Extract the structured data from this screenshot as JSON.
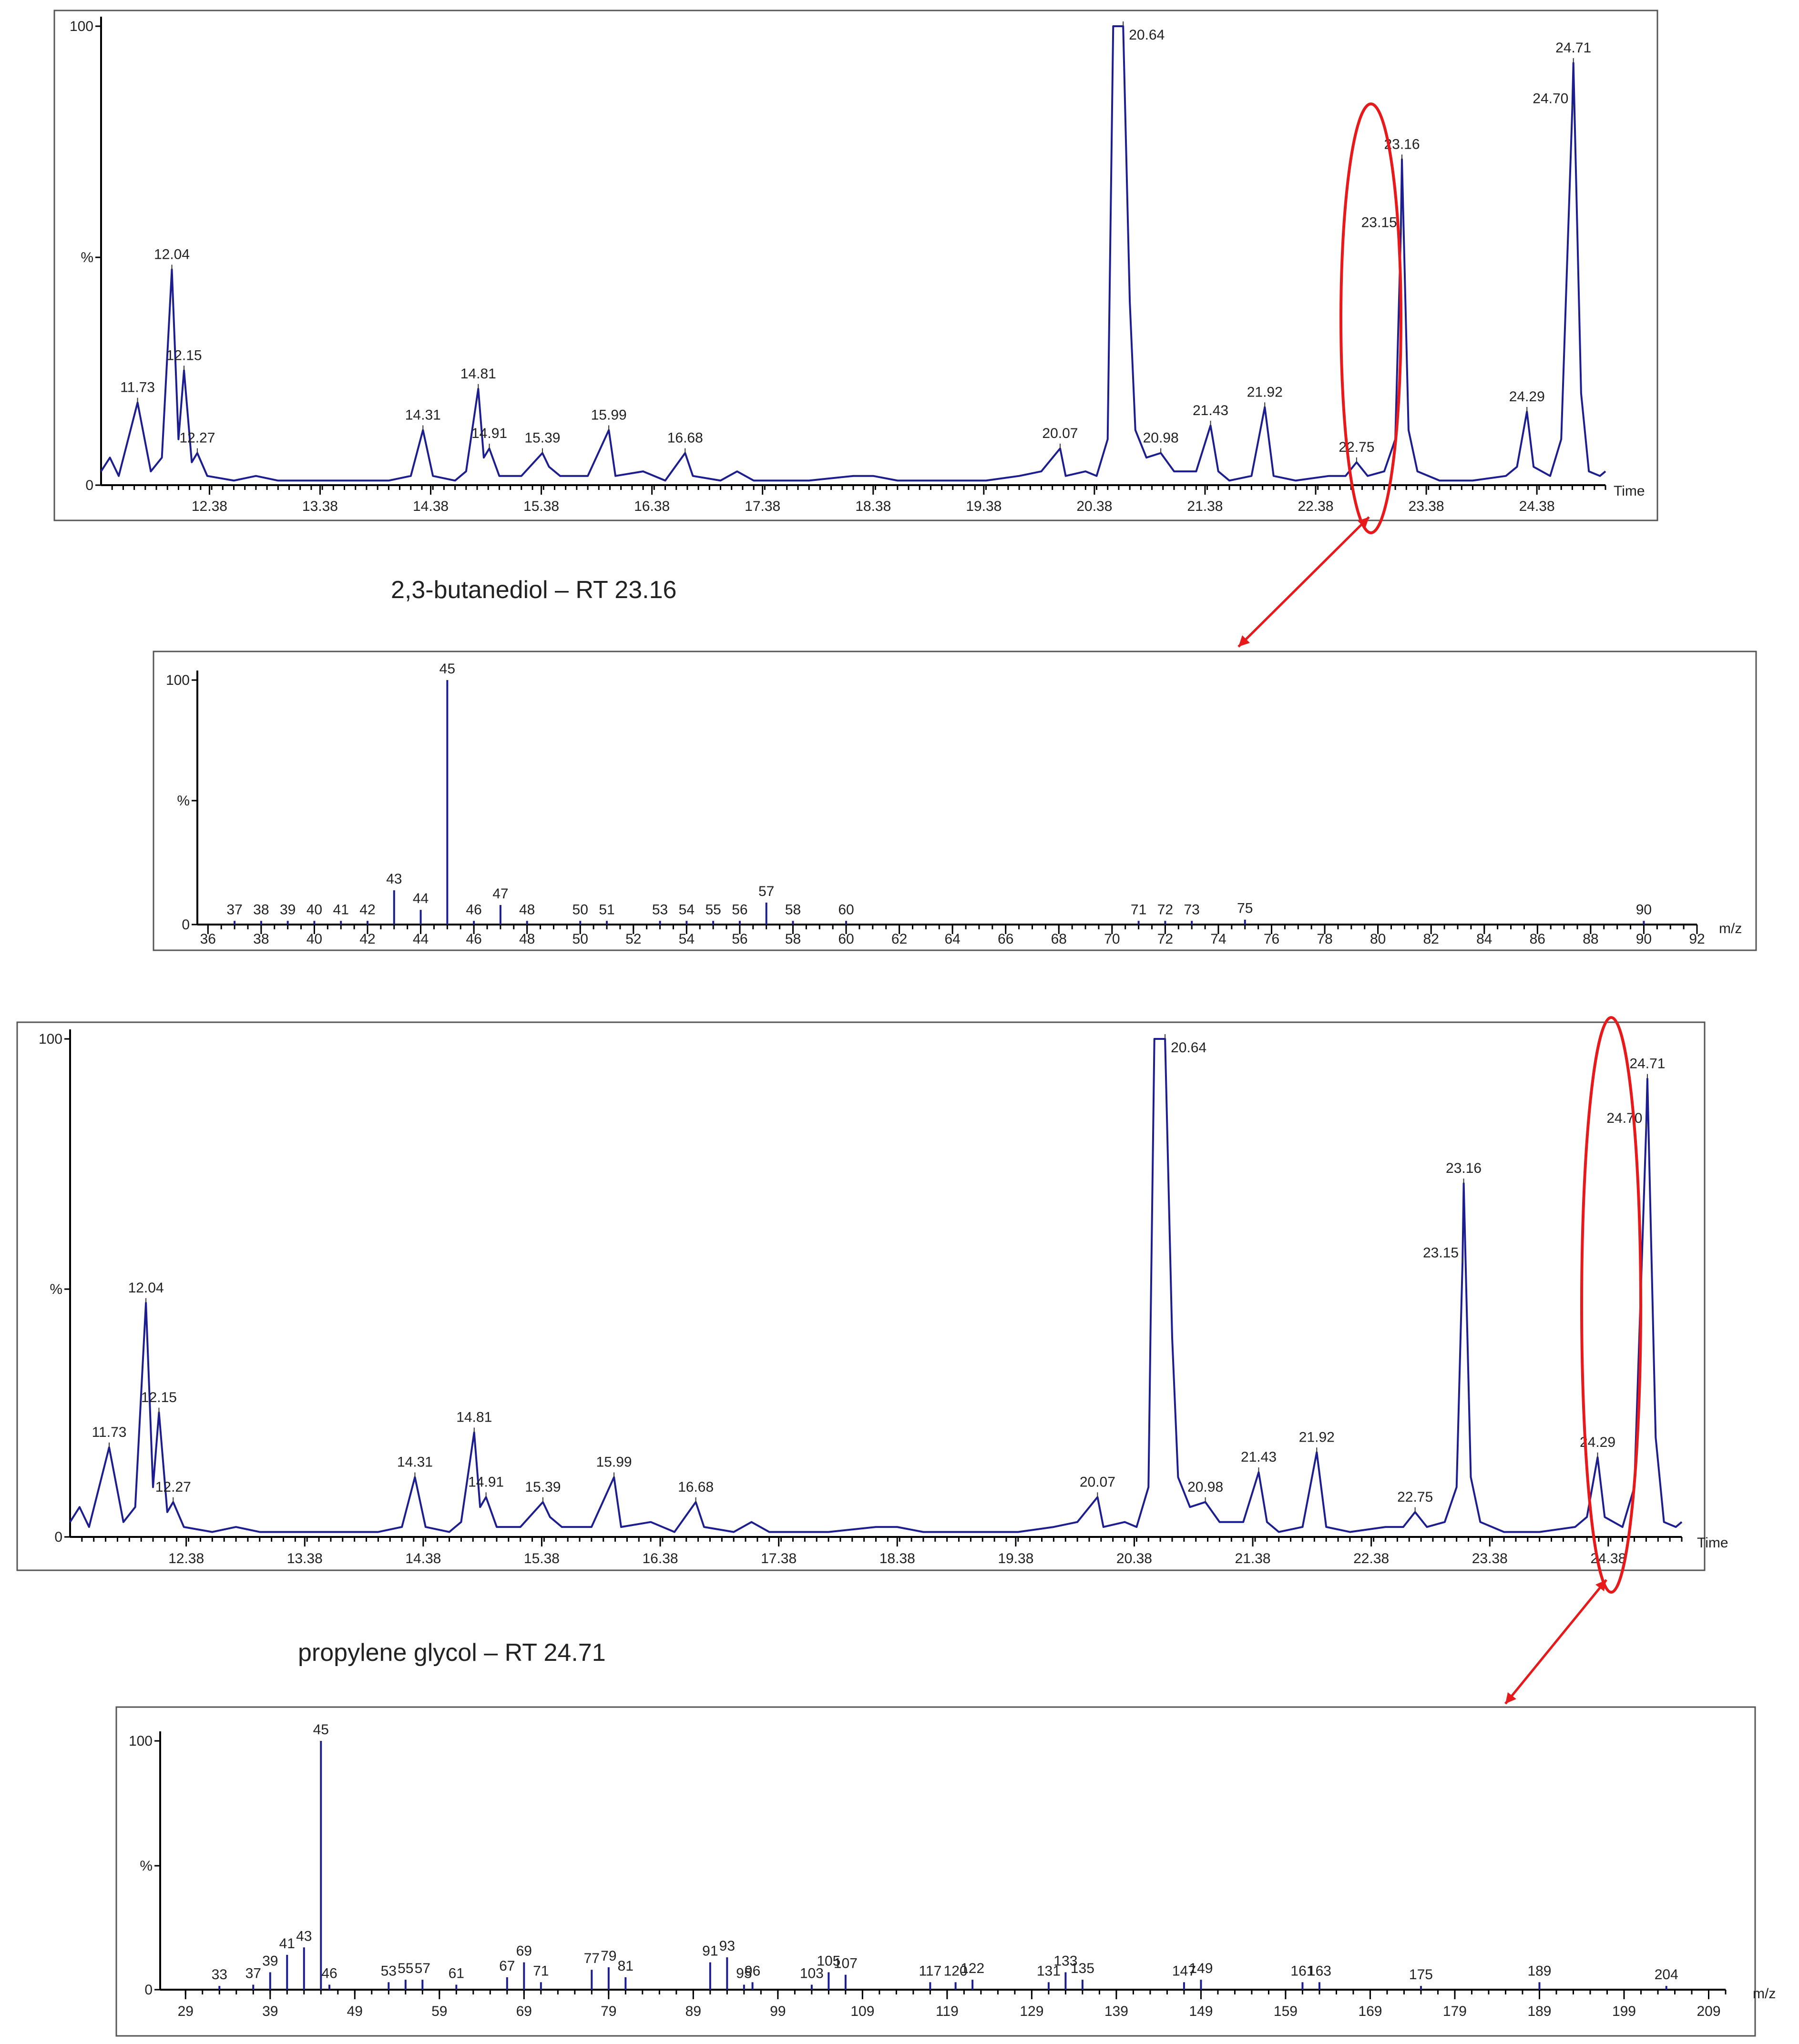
{
  "colors": {
    "trace": "#1c1e8f",
    "highlight": "#e8191b"
  },
  "chart_data": [
    {
      "type": "line",
      "y_tick_labels": [
        "100",
        "%",
        "0"
      ],
      "x_tick_labels": [
        "12.38",
        "13.38",
        "14.38",
        "15.38",
        "16.38",
        "17.38",
        "18.38",
        "19.38",
        "20.38",
        "21.38",
        "22.38",
        "23.38",
        "24.38"
      ],
      "x_unit_label": "Time",
      "xlim": [
        11.4,
        25.0
      ],
      "ylim": [
        0,
        100
      ],
      "series": [
        {
          "points": [
            [
              11.4,
              3
            ],
            [
              11.48,
              6
            ],
            [
              11.56,
              2
            ],
            [
              11.73,
              18
            ],
            [
              11.85,
              3
            ],
            [
              11.95,
              6
            ],
            [
              12.04,
              47
            ],
            [
              12.1,
              10
            ],
            [
              12.15,
              25
            ],
            [
              12.22,
              5
            ],
            [
              12.27,
              7
            ],
            [
              12.36,
              2
            ],
            [
              12.6,
              1
            ],
            [
              12.8,
              2
            ],
            [
              13.0,
              1
            ],
            [
              13.2,
              1
            ],
            [
              13.5,
              1
            ],
            [
              13.8,
              1
            ],
            [
              14.0,
              1
            ],
            [
              14.2,
              2
            ],
            [
              14.31,
              12
            ],
            [
              14.4,
              2
            ],
            [
              14.6,
              1
            ],
            [
              14.7,
              3
            ],
            [
              14.81,
              21
            ],
            [
              14.86,
              6
            ],
            [
              14.91,
              8
            ],
            [
              15.0,
              2
            ],
            [
              15.2,
              2
            ],
            [
              15.39,
              7
            ],
            [
              15.45,
              4
            ],
            [
              15.55,
              2
            ],
            [
              15.8,
              2
            ],
            [
              15.99,
              12
            ],
            [
              16.05,
              2
            ],
            [
              16.3,
              3
            ],
            [
              16.5,
              1
            ],
            [
              16.68,
              7
            ],
            [
              16.75,
              2
            ],
            [
              17.0,
              1
            ],
            [
              17.15,
              3
            ],
            [
              17.3,
              1
            ],
            [
              17.8,
              1
            ],
            [
              18.2,
              2
            ],
            [
              18.38,
              2
            ],
            [
              18.6,
              1
            ],
            [
              19.0,
              1
            ],
            [
              19.4,
              1
            ],
            [
              19.7,
              2
            ],
            [
              19.9,
              3
            ],
            [
              20.07,
              8
            ],
            [
              20.12,
              2
            ],
            [
              20.3,
              3
            ],
            [
              20.4,
              2
            ],
            [
              20.5,
              10
            ],
            [
              20.55,
              100
            ],
            [
              20.64,
              100
            ],
            [
              20.7,
              40
            ],
            [
              20.75,
              12
            ],
            [
              20.85,
              6
            ],
            [
              20.98,
              7
            ],
            [
              21.1,
              3
            ],
            [
              21.3,
              3
            ],
            [
              21.43,
              13
            ],
            [
              21.5,
              3
            ],
            [
              21.6,
              1
            ],
            [
              21.8,
              2
            ],
            [
              21.92,
              17
            ],
            [
              22.0,
              2
            ],
            [
              22.2,
              1
            ],
            [
              22.5,
              2
            ],
            [
              22.65,
              2
            ],
            [
              22.75,
              5
            ],
            [
              22.85,
              2
            ],
            [
              23.0,
              3
            ],
            [
              23.1,
              10
            ],
            [
              23.15,
              55
            ],
            [
              23.16,
              71
            ],
            [
              23.22,
              12
            ],
            [
              23.3,
              3
            ],
            [
              23.5,
              1
            ],
            [
              23.8,
              1
            ],
            [
              24.1,
              2
            ],
            [
              24.2,
              4
            ],
            [
              24.29,
              16
            ],
            [
              24.35,
              4
            ],
            [
              24.5,
              2
            ],
            [
              24.6,
              10
            ],
            [
              24.7,
              82
            ],
            [
              24.71,
              92
            ],
            [
              24.78,
              20
            ],
            [
              24.85,
              3
            ],
            [
              24.95,
              2
            ],
            [
              25.0,
              3
            ]
          ]
        }
      ],
      "peak_labels": [
        {
          "label": "11.73",
          "x": 11.73,
          "y": 18
        },
        {
          "label": "12.04",
          "x": 12.04,
          "y": 47
        },
        {
          "label": "12.15",
          "x": 12.15,
          "y": 25
        },
        {
          "label": "12.27",
          "x": 12.27,
          "y": 7
        },
        {
          "label": "14.31",
          "x": 14.31,
          "y": 12
        },
        {
          "label": "14.81",
          "x": 14.81,
          "y": 21
        },
        {
          "label": "14.91",
          "x": 14.91,
          "y": 8
        },
        {
          "label": "15.39",
          "x": 15.39,
          "y": 7
        },
        {
          "label": "15.99",
          "x": 15.99,
          "y": 12
        },
        {
          "label": "16.68",
          "x": 16.68,
          "y": 7
        },
        {
          "label": "20.07",
          "x": 20.07,
          "y": 8
        },
        {
          "label": "20.64",
          "x": 20.64,
          "y": 100
        },
        {
          "label": "20.98",
          "x": 20.98,
          "y": 7
        },
        {
          "label": "21.43",
          "x": 21.43,
          "y": 13
        },
        {
          "label": "21.92",
          "x": 21.92,
          "y": 17
        },
        {
          "label": "22.75",
          "x": 22.75,
          "y": 5
        },
        {
          "label": "23.16",
          "x": 23.16,
          "y": 71
        },
        {
          "label": "23.15",
          "x": 23.15,
          "y": 55
        },
        {
          "label": "24.29",
          "x": 24.29,
          "y": 16
        },
        {
          "label": "24.71",
          "x": 24.71,
          "y": 92
        },
        {
          "label": "24.70",
          "x": 24.7,
          "y": 82
        }
      ]
    },
    {
      "type": "bar",
      "y_tick_labels": [
        "100",
        "%",
        "0"
      ],
      "x_unit_label": "m/z",
      "xlim": [
        35.6,
        92.0
      ],
      "x_ticks": [
        36,
        38,
        40,
        42,
        44,
        46,
        48,
        50,
        52,
        54,
        56,
        58,
        60,
        62,
        64,
        66,
        68,
        70,
        72,
        74,
        76,
        78,
        80,
        82,
        84,
        86,
        88,
        90,
        92
      ],
      "ylim": [
        0,
        100
      ],
      "peaks": [
        [
          37,
          1
        ],
        [
          38,
          1
        ],
        [
          39,
          1
        ],
        [
          40,
          1
        ],
        [
          41,
          1
        ],
        [
          42,
          1
        ],
        [
          43,
          14
        ],
        [
          44,
          6
        ],
        [
          45,
          100
        ],
        [
          46,
          1
        ],
        [
          47,
          8
        ],
        [
          48,
          1
        ],
        [
          50,
          1
        ],
        [
          51,
          1
        ],
        [
          53,
          1
        ],
        [
          54,
          1
        ],
        [
          55,
          1
        ],
        [
          56,
          1
        ],
        [
          57,
          9
        ],
        [
          58,
          1
        ],
        [
          60,
          1
        ],
        [
          71,
          1
        ],
        [
          72,
          1
        ],
        [
          73,
          1
        ],
        [
          75,
          2
        ],
        [
          90,
          1
        ]
      ]
    },
    {
      "type": "line",
      "y_tick_labels": [
        "100",
        "%",
        "0"
      ],
      "x_tick_labels": [
        "12.38",
        "13.38",
        "14.38",
        "15.38",
        "16.38",
        "17.38",
        "18.38",
        "19.38",
        "20.38",
        "21.38",
        "22.38",
        "23.38",
        "24.38"
      ],
      "x_unit_label": "Time",
      "xlim": [
        11.4,
        25.0
      ],
      "ylim": [
        0,
        100
      ],
      "peak_labels": [
        {
          "label": "11.73",
          "x": 11.73,
          "y": 18
        },
        {
          "label": "12.04",
          "x": 12.04,
          "y": 47
        },
        {
          "label": "12.15",
          "x": 12.15,
          "y": 25
        },
        {
          "label": "12.27",
          "x": 12.27,
          "y": 7
        },
        {
          "label": "14.31",
          "x": 14.31,
          "y": 12
        },
        {
          "label": "14.81",
          "x": 14.81,
          "y": 21
        },
        {
          "label": "14.91",
          "x": 14.91,
          "y": 8
        },
        {
          "label": "15.39",
          "x": 15.39,
          "y": 7
        },
        {
          "label": "15.99",
          "x": 15.99,
          "y": 12
        },
        {
          "label": "16.68",
          "x": 16.68,
          "y": 7
        },
        {
          "label": "20.07",
          "x": 20.07,
          "y": 8
        },
        {
          "label": "20.64",
          "x": 20.64,
          "y": 100
        },
        {
          "label": "20.98",
          "x": 20.98,
          "y": 7
        },
        {
          "label": "21.43",
          "x": 21.43,
          "y": 13
        },
        {
          "label": "21.92",
          "x": 21.92,
          "y": 17
        },
        {
          "label": "22.75",
          "x": 22.75,
          "y": 5
        },
        {
          "label": "23.16",
          "x": 23.16,
          "y": 71
        },
        {
          "label": "23.15",
          "x": 23.15,
          "y": 55
        },
        {
          "label": "24.29",
          "x": 24.29,
          "y": 16
        },
        {
          "label": "24.71",
          "x": 24.71,
          "y": 92
        },
        {
          "label": "24.70",
          "x": 24.7,
          "y": 82
        }
      ]
    },
    {
      "type": "bar",
      "y_tick_labels": [
        "100",
        "%",
        "0"
      ],
      "x_unit_label": "m/z",
      "xlim": [
        26,
        211
      ],
      "x_ticks": [
        29,
        39,
        49,
        59,
        69,
        79,
        89,
        99,
        109,
        119,
        129,
        139,
        149,
        159,
        169,
        179,
        189,
        199,
        209
      ],
      "ylim": [
        0,
        100
      ],
      "peaks": [
        [
          33,
          1
        ],
        [
          37,
          2
        ],
        [
          39,
          7
        ],
        [
          41,
          14
        ],
        [
          43,
          17
        ],
        [
          45,
          100
        ],
        [
          46,
          2
        ],
        [
          53,
          3
        ],
        [
          55,
          4
        ],
        [
          57,
          4
        ],
        [
          61,
          2
        ],
        [
          67,
          5
        ],
        [
          69,
          11
        ],
        [
          71,
          3
        ],
        [
          77,
          8
        ],
        [
          79,
          9
        ],
        [
          81,
          5
        ],
        [
          91,
          11
        ],
        [
          93,
          13
        ],
        [
          95,
          2
        ],
        [
          96,
          3
        ],
        [
          103,
          2
        ],
        [
          105,
          7
        ],
        [
          107,
          6
        ],
        [
          117,
          3
        ],
        [
          120,
          3
        ],
        [
          122,
          4
        ],
        [
          131,
          3
        ],
        [
          133,
          7
        ],
        [
          135,
          4
        ],
        [
          147,
          3
        ],
        [
          149,
          4
        ],
        [
          161,
          3
        ],
        [
          163,
          3
        ],
        [
          175,
          1
        ],
        [
          189,
          3
        ],
        [
          204,
          1
        ]
      ]
    }
  ],
  "captions": {
    "caption_1": "2,3-butanediol – RT 23.16",
    "caption_2": "propylene glycol – RT 24.71"
  }
}
